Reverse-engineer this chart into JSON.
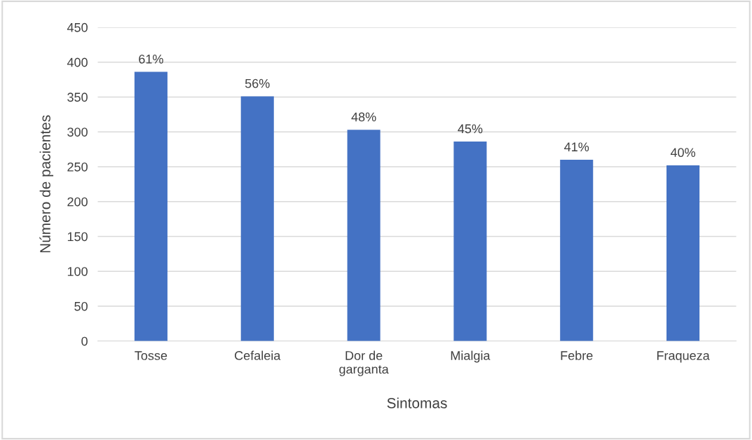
{
  "chart_data": {
    "type": "bar",
    "xlabel": "Sintomas",
    "ylabel": "Número de pacientes",
    "categories": [
      "Tosse",
      "Cefaleia",
      "Dor de\ngarganta",
      "Mialgia",
      "Febre",
      "Fraqueza"
    ],
    "values": [
      386,
      351,
      303,
      286,
      260,
      252
    ],
    "annotations": [
      {
        "text": "61%",
        "x": "Tosse",
        "y": 386
      },
      {
        "text": "56%",
        "x": "Cefaleia",
        "y": 351
      },
      {
        "text": "48%",
        "x": "Dor de\ngarganta",
        "y": 303
      },
      {
        "text": "45%",
        "x": "Mialgia",
        "y": 286
      },
      {
        "text": "41%",
        "x": "Febre",
        "y": 260
      },
      {
        "text": "40%",
        "x": "Fraqueza",
        "y": 252
      }
    ],
    "color": "#4472c4",
    "ylim": [
      0,
      450
    ],
    "yticks": [
      0,
      50,
      100,
      150,
      200,
      250,
      300,
      350,
      400,
      450
    ],
    "grid": "y",
    "legend": false
  }
}
